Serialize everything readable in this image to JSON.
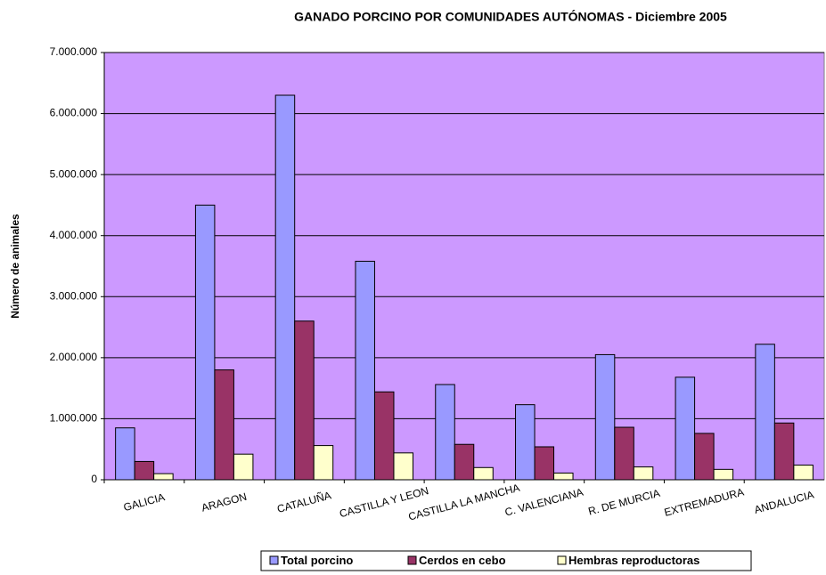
{
  "chart_data": {
    "type": "bar",
    "title": "GANADO PORCINO POR COMUNIDADES AUTÓNOMAS - Diciembre 2005",
    "y_label": "Número de animales",
    "categories": [
      "GALICIA",
      "ARAGON",
      "CATALUÑA",
      "CASTILLA Y LEON",
      "CASTILLA LA MANCHA",
      "C. VALENCIANA",
      "R. DE MURCIA",
      "EXTREMADURA",
      "ANDALUCIA"
    ],
    "series": [
      {
        "name": "Total porcino",
        "color": "#9999ff",
        "values": [
          850000,
          4500000,
          6300000,
          3580000,
          1560000,
          1230000,
          2050000,
          1680000,
          2220000
        ]
      },
      {
        "name": "Cerdos en cebo",
        "color": "#993366",
        "values": [
          300000,
          1800000,
          2600000,
          1440000,
          580000,
          540000,
          860000,
          760000,
          930000
        ]
      },
      {
        "name": "Hembras reproductoras",
        "color": "#ffffcc",
        "values": [
          100000,
          420000,
          560000,
          440000,
          200000,
          110000,
          210000,
          170000,
          240000
        ]
      }
    ],
    "ylim": [
      0,
      7000000
    ],
    "yticks": [
      0,
      {
        "value": 1000000,
        "label": "1.000.000"
      },
      {
        "value": 2000000,
        "label": "2.000.000"
      },
      {
        "value": 3000000,
        "label": "3.000.000"
      },
      {
        "value": 4000000,
        "label": "4.000.000"
      },
      {
        "value": 5000000,
        "label": "5.000.000"
      },
      {
        "value": 6000000,
        "label": "6.000.000"
      },
      {
        "value": 7000000,
        "label": "7.000.000"
      }
    ],
    "grid": true,
    "plot_background": "#cc99ff",
    "legend": "bottom"
  }
}
